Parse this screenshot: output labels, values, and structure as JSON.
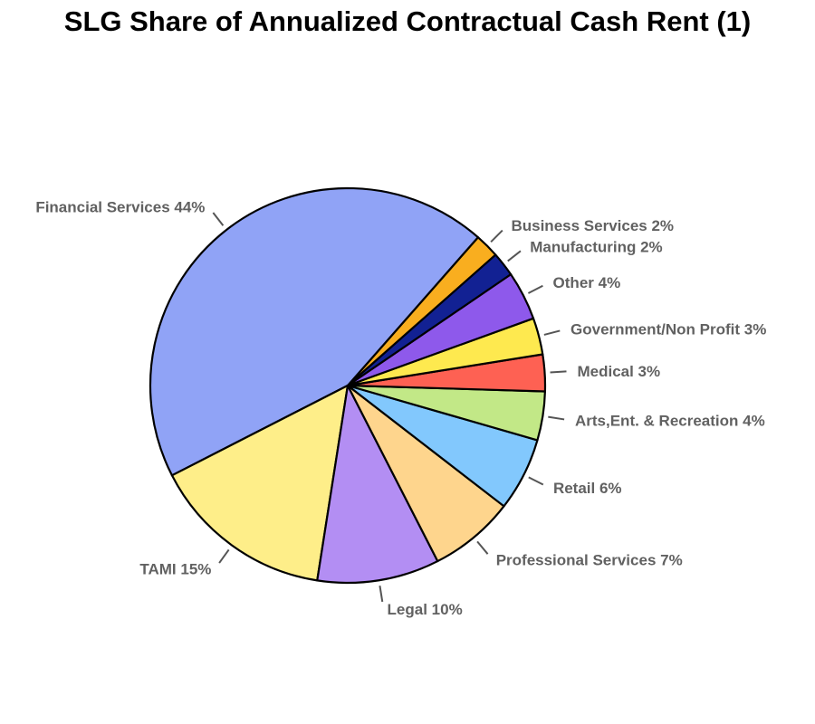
{
  "title": "SLG Share of Annualized Contractual Cash Rent (1)",
  "chart_data": {
    "type": "pie",
    "title": "SLG Share of Annualized Contractual Cash Rent (1)",
    "start": "right, counter-clockwise",
    "slices": [
      {
        "name": "Business Services",
        "value": 2,
        "label": "Business Services 2%",
        "color": "#F9AE1F"
      },
      {
        "name": "Financial Services",
        "value": 44,
        "label": "Financial Services 44%",
        "color": "#90A3F6"
      },
      {
        "name": "TAMI",
        "value": 15,
        "label": "TAMI 15%",
        "color": "#FEEE89"
      },
      {
        "name": "Legal",
        "value": 10,
        "label": "Legal 10%",
        "color": "#B38EF3"
      },
      {
        "name": "Professional Services",
        "value": 7,
        "label": "Professional Services 7%",
        "color": "#FED58D"
      },
      {
        "name": "Retail",
        "value": 6,
        "label": "Retail 6%",
        "color": "#82C8FD"
      },
      {
        "name": "Arts,Ent. & Recreation",
        "value": 4,
        "label": "Arts,Ent. & Recreation 4%",
        "color": "#C2E887"
      },
      {
        "name": "Medical",
        "value": 3,
        "label": "Medical 3%",
        "color": "#FE6153"
      },
      {
        "name": "Government/Non Profit",
        "value": 3,
        "label": "Government/Non Profit 3%",
        "color": "#FEE94F"
      },
      {
        "name": "Other",
        "value": 4,
        "label": "Other 4%",
        "color": "#8E59EB"
      },
      {
        "name": "Manufacturing",
        "value": 2,
        "label": "Manufacturing 2%",
        "color": "#122193"
      }
    ]
  }
}
